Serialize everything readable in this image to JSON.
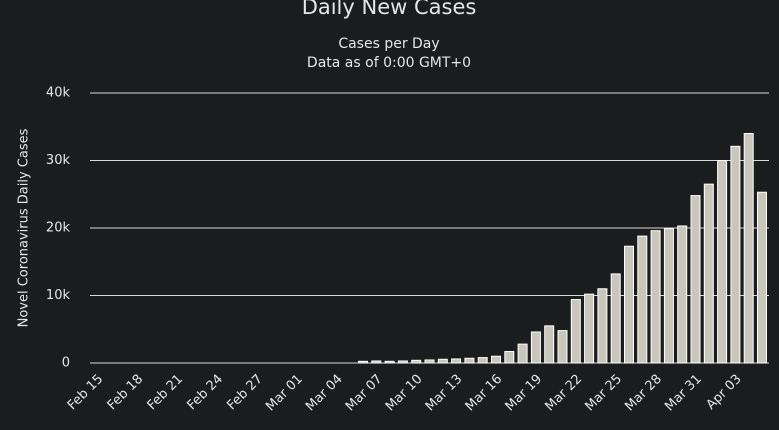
{
  "chart_data": {
    "type": "bar",
    "title": "Daily New Cases",
    "subtitle": [
      "Cases per Day",
      "Data as of 0:00 GMT+0"
    ],
    "y_label": "Novel Coronavirus Daily Cases",
    "categories": [
      "Feb 15",
      null,
      null,
      "Feb 18",
      null,
      null,
      "Feb 21",
      null,
      null,
      "Feb 24",
      null,
      null,
      "Feb 27",
      null,
      null,
      "Mar 01",
      null,
      null,
      "Mar 04",
      null,
      null,
      "Mar 07",
      null,
      null,
      "Mar 10",
      null,
      null,
      "Mar 13",
      null,
      null,
      "Mar 16",
      null,
      null,
      "Mar 19",
      null,
      null,
      "Mar 22",
      null,
      null,
      "Mar 25",
      null,
      null,
      "Mar 28",
      null,
      null,
      "Mar 31",
      null,
      null,
      "Apr 03",
      null,
      null
    ],
    "values": [
      0,
      0,
      0,
      0,
      0,
      0,
      0,
      0,
      0,
      0,
      0,
      0,
      0,
      0,
      0,
      0,
      0,
      0,
      0,
      0,
      250,
      300,
      250,
      300,
      400,
      450,
      550,
      600,
      700,
      800,
      1000,
      1700,
      2800,
      4600,
      5500,
      4800,
      9400,
      10200,
      11000,
      13200,
      17300,
      18800,
      19600,
      19900,
      20300,
      24800,
      26500,
      30000,
      32100,
      34000,
      25300
    ],
    "color": "#c9c6bb",
    "ylim": [
      0,
      40000
    ],
    "yticks": [
      0,
      {
        "value": 10000,
        "label": "10k"
      },
      {
        "value": 20000,
        "label": "20k"
      },
      {
        "value": 30000,
        "label": "30k"
      },
      {
        "value": 40000,
        "label": "40k"
      }
    ],
    "grid": true
  }
}
